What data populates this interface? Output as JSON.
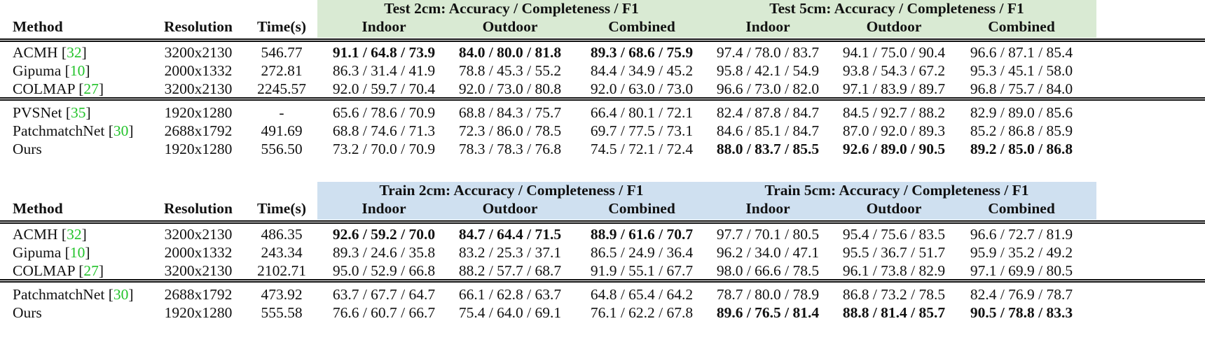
{
  "colors": {
    "test_header_bg": "#d9ead3",
    "train_header_bg": "#cfe0f0",
    "citation": "#22c32a"
  },
  "tables": [
    {
      "header": {
        "method": "Method",
        "resolution": "Resolution",
        "time": "Time(s)",
        "group_2cm": "Test 2cm: Accuracy / Completeness / F1",
        "group_5cm": "Test 5cm: Accuracy / Completeness / F1",
        "subcols": [
          "Indoor",
          "Outdoor",
          "Combined",
          "Indoor",
          "Outdoor",
          "Combined"
        ]
      },
      "blocks": [
        [
          {
            "method": "ACMH",
            "cite": "32",
            "resolution": "3200x2130",
            "time": "546.77",
            "values": [
              "91.1 / 64.8 / 73.9",
              "84.0 / 80.0 / 81.8",
              "89.3 / 68.6 / 75.9",
              "97.4 / 78.0 / 83.7",
              "94.1 / 75.0 / 90.4",
              "96.6 / 87.1 / 85.4"
            ],
            "bold": [
              true,
              true,
              true,
              false,
              false,
              false
            ]
          },
          {
            "method": "Gipuma",
            "cite": "10",
            "resolution": "2000x1332",
            "time": "272.81",
            "values": [
              "86.3 / 31.4 / 41.9",
              "78.8 / 45.3 / 55.2",
              "84.4 / 34.9 / 45.2",
              "95.8 / 42.1 / 54.9",
              "93.8 / 54.3 / 67.2",
              "95.3 / 45.1 / 58.0"
            ],
            "bold": [
              false,
              false,
              false,
              false,
              false,
              false
            ]
          },
          {
            "method": "COLMAP",
            "cite": "27",
            "resolution": "3200x2130",
            "time": "2245.57",
            "values": [
              "92.0 / 59.7 / 70.4",
              "92.0 / 73.0 / 80.8",
              "92.0 / 63.0 / 73.0",
              "96.6 / 73.0 / 82.0",
              "97.1 / 83.9 / 89.7",
              "96.8 / 75.7 / 84.0"
            ],
            "bold": [
              false,
              false,
              false,
              false,
              false,
              false
            ]
          }
        ],
        [
          {
            "method": "PVSNet",
            "cite": "35",
            "resolution": "1920x1280",
            "time": "-",
            "values": [
              "65.6 / 78.6 / 70.9",
              "68.8 / 84.3 / 75.7",
              "66.4 / 80.1 / 72.1",
              "82.4 / 87.8 / 84.7",
              "84.5 / 92.7 / 88.2",
              "82.9 / 89.0 / 85.6"
            ],
            "bold": [
              false,
              false,
              false,
              false,
              false,
              false
            ]
          },
          {
            "method": "PatchmatchNet",
            "cite": "30",
            "resolution": "2688x1792",
            "time": "491.69",
            "values": [
              "68.8 / 74.6 / 71.3",
              "72.3 / 86.0 / 78.5",
              "69.7 / 77.5 / 73.1",
              "84.6 / 85.1 / 84.7",
              "87.0 / 92.0 / 89.3",
              "85.2 / 86.8 / 85.9"
            ],
            "bold": [
              false,
              false,
              false,
              false,
              false,
              false
            ]
          },
          {
            "method": "Ours",
            "cite": "",
            "resolution": "1920x1280",
            "time": "556.50",
            "values": [
              "73.2 / 70.0 / 70.9",
              "78.3 / 78.3 / 76.8",
              "74.5 / 72.1 / 72.4",
              "88.0 / 83.7 / 85.5",
              "92.6 / 89.0 / 90.5",
              "89.2 / 85.0 / 86.8"
            ],
            "bold": [
              false,
              false,
              false,
              true,
              true,
              true
            ]
          }
        ]
      ]
    },
    {
      "header": {
        "method": "Method",
        "resolution": "Resolution",
        "time": "Time(s)",
        "group_2cm": "Train 2cm: Accuracy / Completeness / F1",
        "group_5cm": "Train 5cm: Accuracy / Completeness / F1",
        "subcols": [
          "Indoor",
          "Outdoor",
          "Combined",
          "Indoor",
          "Outdoor",
          "Combined"
        ]
      },
      "blocks": [
        [
          {
            "method": "ACMH",
            "cite": "32",
            "resolution": "3200x2130",
            "time": "486.35",
            "values": [
              "92.6 / 59.2 / 70.0",
              "84.7 / 64.4 / 71.5",
              "88.9 / 61.6 / 70.7",
              "97.7 / 70.1 / 80.5",
              "95.4 / 75.6 / 83.5",
              "96.6 / 72.7 / 81.9"
            ],
            "bold": [
              true,
              true,
              true,
              false,
              false,
              false
            ]
          },
          {
            "method": "Gipuma",
            "cite": "10",
            "resolution": "2000x1332",
            "time": "243.34",
            "values": [
              "89.3 / 24.6 / 35.8",
              "83.2 / 25.3 / 37.1",
              "86.5 / 24.9 / 36.4",
              "96.2 / 34.0 / 47.1",
              "95.5 / 36.7 / 51.7",
              "95.9 / 35.2 / 49.2"
            ],
            "bold": [
              false,
              false,
              false,
              false,
              false,
              false
            ]
          },
          {
            "method": "COLMAP",
            "cite": "27",
            "resolution": "3200x2130",
            "time": "2102.71",
            "values": [
              "95.0 / 52.9 / 66.8",
              "88.2 / 57.7 / 68.7",
              "91.9 / 55.1 / 67.7",
              "98.0 / 66.6 / 78.5",
              "96.1 / 73.8 / 82.9",
              "97.1 / 69.9 / 80.5"
            ],
            "bold": [
              false,
              false,
              false,
              false,
              false,
              false
            ]
          }
        ],
        [
          {
            "method": "PatchmatchNet",
            "cite": "30",
            "resolution": "2688x1792",
            "time": "473.92",
            "values": [
              "63.7 / 67.7 / 64.7",
              "66.1 / 62.8 / 63.7",
              "64.8 / 65.4 / 64.2",
              "78.7 / 80.0 / 78.9",
              "86.8 / 73.2 / 78.5",
              "82.4 / 76.9 / 78.7"
            ],
            "bold": [
              false,
              false,
              false,
              false,
              false,
              false
            ]
          },
          {
            "method": "Ours",
            "cite": "",
            "resolution": "1920x1280",
            "time": "555.58",
            "values": [
              "76.6 / 60.7 / 66.7",
              "75.4 / 64.0 / 69.1",
              "76.1 / 62.2 / 67.8",
              "89.6 / 76.5 / 81.4",
              "88.8 / 81.4 / 85.7",
              "90.5 / 78.8 / 83.3"
            ],
            "bold": [
              false,
              false,
              false,
              true,
              true,
              true
            ]
          }
        ]
      ]
    }
  ]
}
